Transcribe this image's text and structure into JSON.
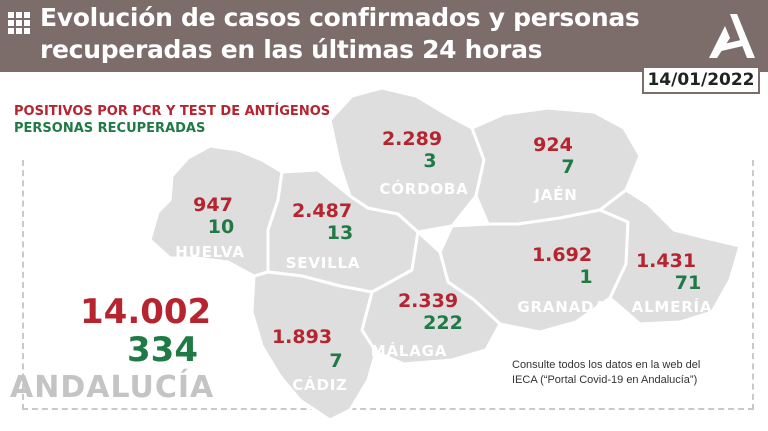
{
  "header": {
    "title_line1": "Evolución de casos confirmados y personas",
    "title_line2": "recuperadas en las últimas 24 horas",
    "date": "14/01/2022",
    "background_color": "#7c6d6b"
  },
  "legend": {
    "positives_label": "POSITIVOS POR PCR Y TEST DE ANTÍGENOS",
    "recovered_label": "PERSONAS RECUPERADAS",
    "positives_color": "#b5242f",
    "recovered_color": "#1f7a45"
  },
  "totals": {
    "region": "ANDALUCÍA",
    "positives": "14.002",
    "recovered": "334"
  },
  "provinces": [
    {
      "name": "HUELVA",
      "positives": "947",
      "recovered": "10"
    },
    {
      "name": "SEVILLA",
      "positives": "2.487",
      "recovered": "13"
    },
    {
      "name": "CÓRDOBA",
      "positives": "2.289",
      "recovered": "3"
    },
    {
      "name": "JAÉN",
      "positives": "924",
      "recovered": "7"
    },
    {
      "name": "GRANADA",
      "positives": "1.692",
      "recovered": "1"
    },
    {
      "name": "ALMERÍA",
      "positives": "1.431",
      "recovered": "71"
    },
    {
      "name": "MÁLAGA",
      "positives": "2.339",
      "recovered": "222"
    },
    {
      "name": "CÁDIZ",
      "positives": "1.893",
      "recovered": "7"
    }
  ],
  "footnote": {
    "line1": "Consulte todos los datos en la web del",
    "line2": "IECA (“Portal Covid-19 en Andalucía”)"
  },
  "icons": [
    "grid-icon",
    "junta-andalucia-logo"
  ]
}
